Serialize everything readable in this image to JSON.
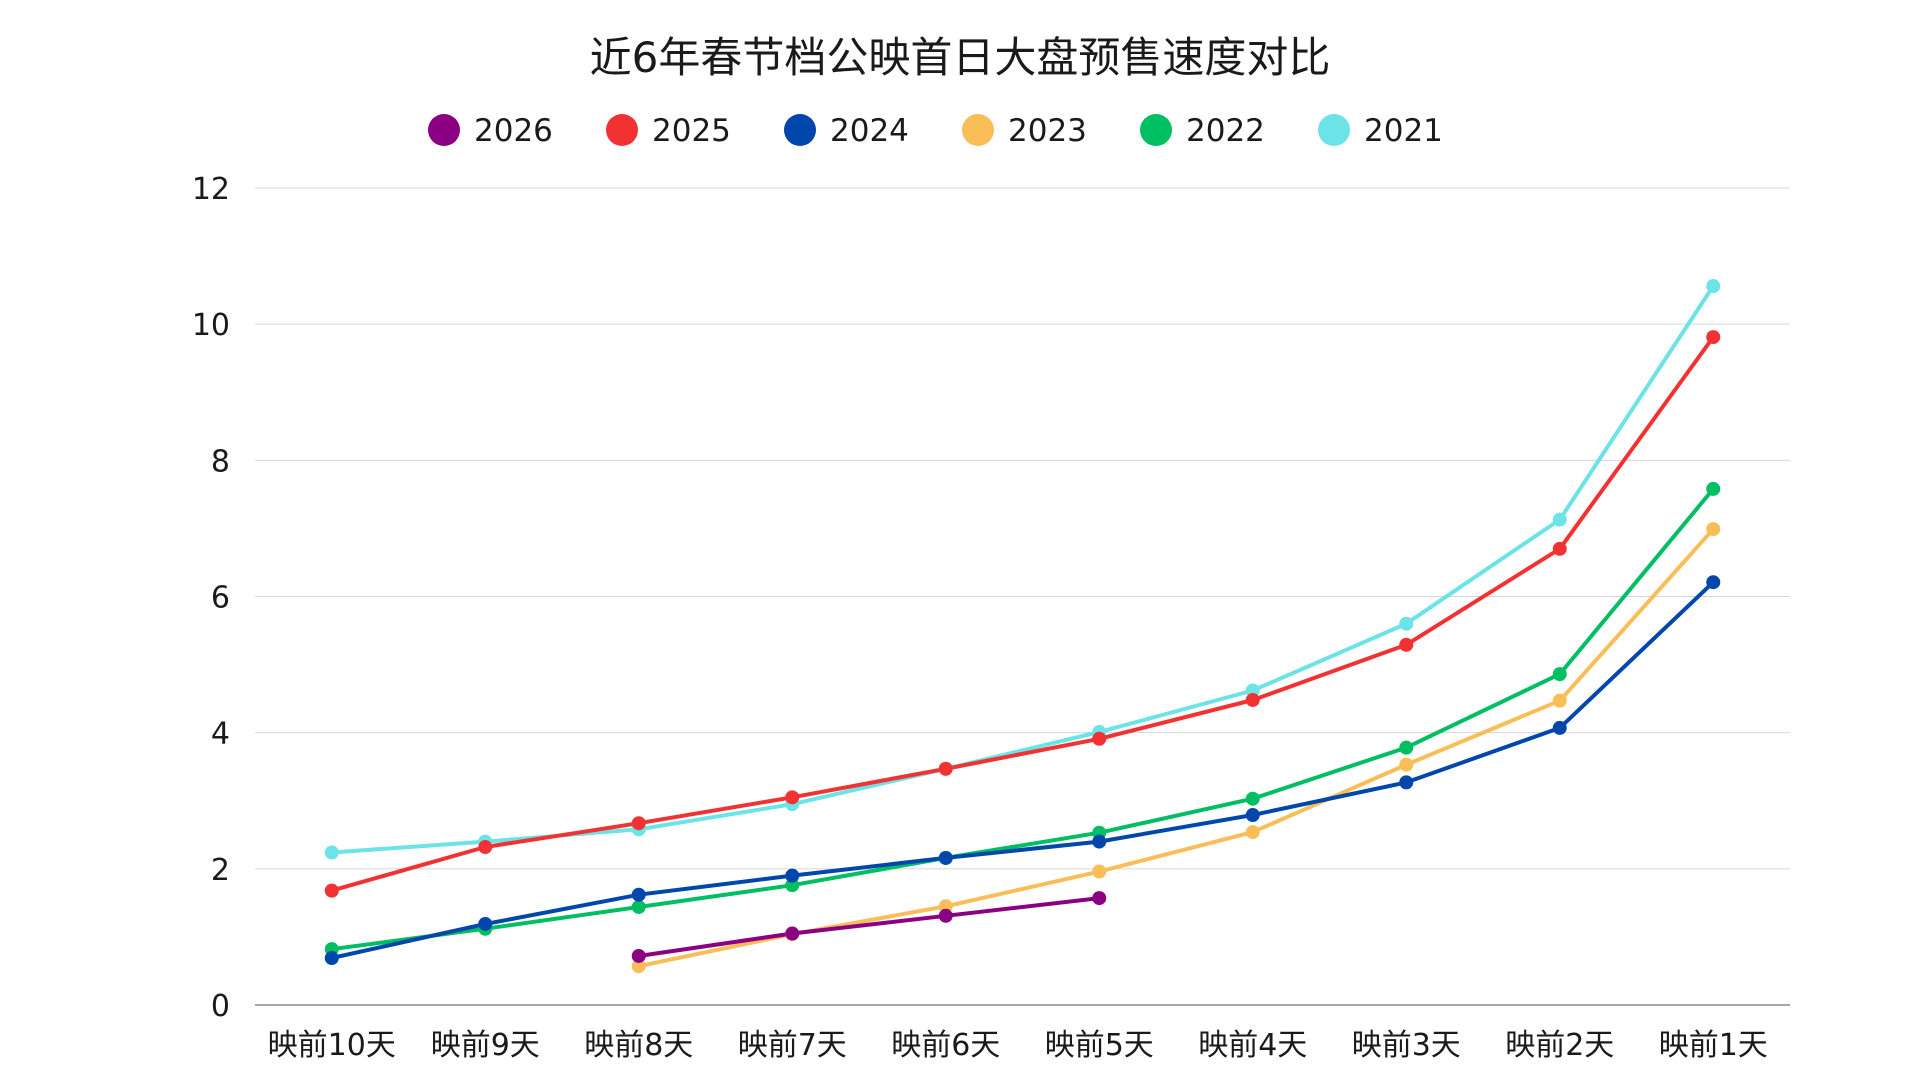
{
  "chart_data": {
    "type": "line",
    "title": "近6年春节档公映首日大盘预售速度对比",
    "categories": [
      "映前10天",
      "映前9天",
      "映前8天",
      "映前7天",
      "映前6天",
      "映前5天",
      "映前4天",
      "映前3天",
      "映前2天",
      "映前1天"
    ],
    "ylim": [
      0,
      12
    ],
    "yticks": [
      0,
      2,
      4,
      6,
      8,
      10,
      12
    ],
    "grid": true,
    "legend_position": "top-center",
    "series": [
      {
        "name": "2026",
        "color": "#8B0083",
        "values": [
          null,
          null,
          0.72,
          1.05,
          1.31,
          1.57,
          null,
          null,
          null,
          null
        ]
      },
      {
        "name": "2025",
        "color": "#F23232",
        "values": [
          1.68,
          2.32,
          2.67,
          3.05,
          3.47,
          3.91,
          4.48,
          5.29,
          6.7,
          9.81
        ]
      },
      {
        "name": "2024",
        "color": "#0047AB",
        "values": [
          0.69,
          1.19,
          1.62,
          1.9,
          2.16,
          2.4,
          2.79,
          3.27,
          4.07,
          6.21
        ]
      },
      {
        "name": "2023",
        "color": "#FABE58",
        "values": [
          null,
          null,
          0.57,
          1.04,
          1.45,
          1.96,
          2.54,
          3.53,
          4.47,
          6.99
        ]
      },
      {
        "name": "2022",
        "color": "#00BE62",
        "values": [
          0.82,
          1.12,
          1.44,
          1.76,
          2.16,
          2.53,
          3.03,
          3.78,
          4.86,
          7.58
        ]
      },
      {
        "name": "2021",
        "color": "#6BE3E7",
        "values": [
          2.24,
          2.4,
          2.58,
          2.95,
          3.47,
          4.01,
          4.62,
          5.6,
          7.13,
          10.56
        ]
      }
    ]
  }
}
